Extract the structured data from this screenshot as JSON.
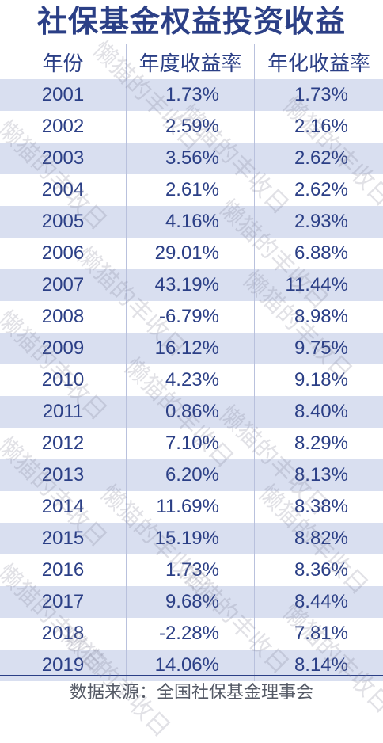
{
  "title": "社保基金权益投资收益",
  "headers": [
    "年份",
    "年度收益率",
    "年化收益率"
  ],
  "rows": [
    {
      "year": "2001",
      "annual": "1.73%",
      "annualized": "1.73%"
    },
    {
      "year": "2002",
      "annual": "2.59%",
      "annualized": "2.16%"
    },
    {
      "year": "2003",
      "annual": "3.56%",
      "annualized": "2.62%"
    },
    {
      "year": "2004",
      "annual": "2.61%",
      "annualized": "2.62%"
    },
    {
      "year": "2005",
      "annual": "4.16%",
      "annualized": "2.93%"
    },
    {
      "year": "2006",
      "annual": "29.01%",
      "annualized": "6.88%"
    },
    {
      "year": "2007",
      "annual": "43.19%",
      "annualized": "11.44%"
    },
    {
      "year": "2008",
      "annual": "-6.79%",
      "annualized": "8.98%"
    },
    {
      "year": "2009",
      "annual": "16.12%",
      "annualized": "9.75%"
    },
    {
      "year": "2010",
      "annual": "4.23%",
      "annualized": "9.18%"
    },
    {
      "year": "2011",
      "annual": "0.86%",
      "annualized": "8.40%"
    },
    {
      "year": "2012",
      "annual": "7.10%",
      "annualized": "8.29%"
    },
    {
      "year": "2013",
      "annual": "6.20%",
      "annualized": "8.13%"
    },
    {
      "year": "2014",
      "annual": "11.69%",
      "annualized": "8.38%"
    },
    {
      "year": "2015",
      "annual": "15.19%",
      "annualized": "8.82%"
    },
    {
      "year": "2016",
      "annual": "1.73%",
      "annualized": "8.36%"
    },
    {
      "year": "2017",
      "annual": "9.68%",
      "annualized": "8.44%"
    },
    {
      "year": "2018",
      "annual": "-2.28%",
      "annualized": "7.81%"
    },
    {
      "year": "2019",
      "annual": "14.06%",
      "annualized": "8.14%"
    }
  ],
  "source": "数据来源：全国社保基金理事会",
  "watermark": "懒猫的丰收日",
  "colors": {
    "text": "#2b3f86",
    "stripe": "#d9dff0"
  }
}
